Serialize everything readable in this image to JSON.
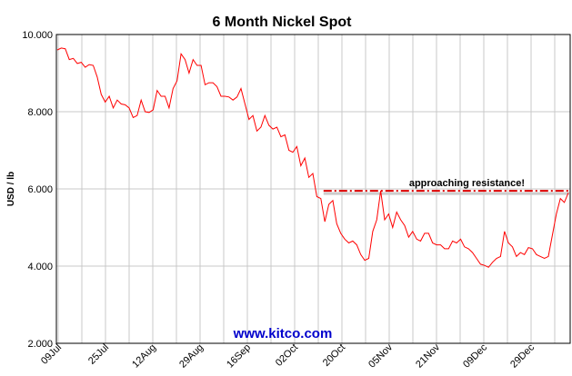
{
  "chart_data": {
    "type": "line",
    "title": "6 Month Nickel Spot",
    "ylabel": "USD / lb",
    "xlabel": "",
    "ylim": [
      2,
      10
    ],
    "y_ticks": [
      2,
      4,
      6,
      8,
      10
    ],
    "y_tick_labels": [
      "2.000",
      "4.000",
      "6.000",
      "8.000",
      "10.000"
    ],
    "grid": true,
    "x_ticks": [
      "09Jul",
      "25Jul",
      "12Aug",
      "29Aug",
      "16Sep",
      "02Oct",
      "20Oct",
      "05Nov",
      "21Nov",
      "09Dec",
      "29Dec"
    ],
    "watermark": "www.kitco.com",
    "series": [
      {
        "color": "#ff0000",
        "values": [
          9.6,
          9.65,
          9.63,
          9.35,
          9.38,
          9.25,
          9.28,
          9.15,
          9.22,
          9.2,
          8.9,
          8.45,
          8.25,
          8.4,
          8.1,
          8.3,
          8.2,
          8.18,
          8.1,
          7.85,
          7.9,
          8.3,
          8.0,
          7.98,
          8.05,
          8.55,
          8.4,
          8.4,
          8.1,
          8.6,
          8.8,
          9.5,
          9.35,
          9.0,
          9.35,
          9.2,
          9.2,
          8.7,
          8.75,
          8.75,
          8.65,
          8.4,
          8.4,
          8.38,
          8.3,
          8.38,
          8.6,
          8.2,
          7.8,
          7.9,
          7.5,
          7.6,
          7.9,
          7.65,
          7.55,
          7.6,
          7.35,
          7.4,
          7.0,
          6.95,
          7.1,
          6.6,
          6.8,
          6.3,
          6.4,
          5.8,
          5.75,
          5.15,
          5.6,
          5.7,
          5.1,
          4.85,
          4.7,
          4.6,
          4.65,
          4.55,
          4.3,
          4.15,
          4.2,
          4.9,
          5.2,
          5.95,
          5.2,
          5.35,
          5.0,
          5.4,
          5.2,
          5.05,
          4.75,
          4.9,
          4.7,
          4.65,
          4.85,
          4.85,
          4.6,
          4.55,
          4.55,
          4.45,
          4.45,
          4.65,
          4.6,
          4.7,
          4.5,
          4.45,
          4.35,
          4.2,
          4.05,
          4.02,
          3.97,
          4.1,
          4.2,
          4.25,
          4.9,
          4.6,
          4.5,
          4.25,
          4.35,
          4.3,
          4.48,
          4.45,
          4.3,
          4.25,
          4.2,
          4.25,
          4.8,
          5.35,
          5.75,
          5.65,
          5.9
        ]
      }
    ],
    "annotations": [
      {
        "text": "approaching resistance!",
        "y": 5.95,
        "x_start_fraction": 0.52,
        "style": "dash-dot red line"
      }
    ]
  }
}
